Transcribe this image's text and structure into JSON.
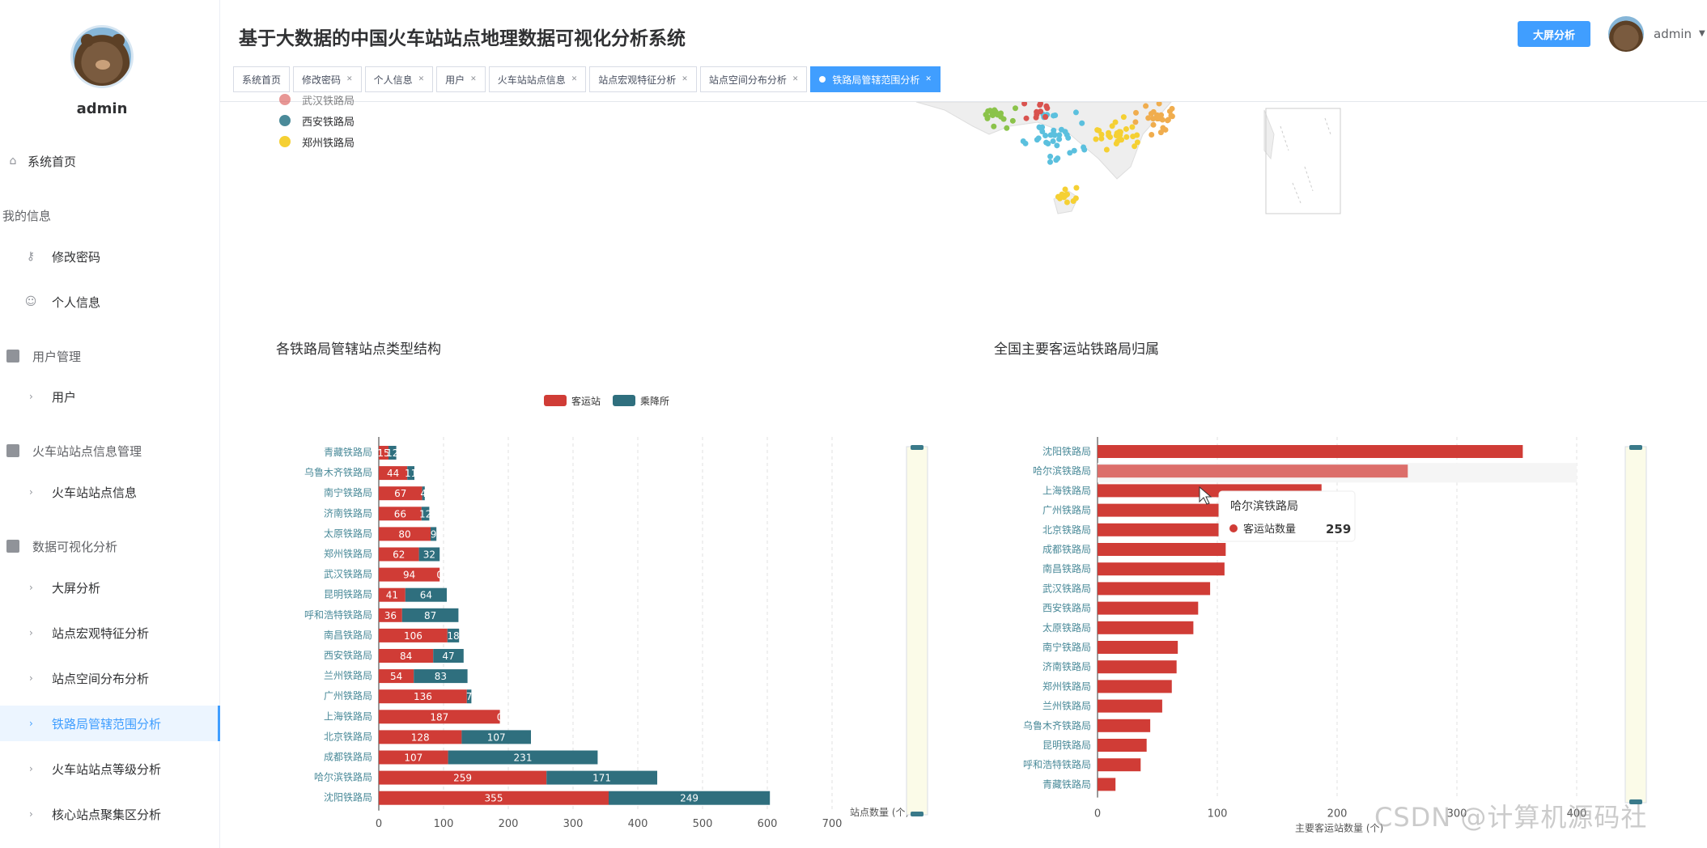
{
  "app": {
    "title": "基于大数据的中国火车站站点地理数据可视化分析系统",
    "big_screen_button": "大屏分析",
    "user": "admin"
  },
  "sidebar": {
    "user": "admin",
    "home": "系统首页",
    "group_my": "我的信息",
    "change_password": "修改密码",
    "profile": "个人信息",
    "group_user_mgmt": "用户管理",
    "users": "用户",
    "group_station_mgmt": "火车站站点信息管理",
    "station_info": "火车站站点信息",
    "group_viz": "数据可视化分析",
    "viz_items": [
      "大屏分析",
      "站点宏观特征分析",
      "站点空间分布分析",
      "铁路局管辖范围分析",
      "火车站站点等级分析",
      "核心站点聚集区分析"
    ]
  },
  "tabs": [
    {
      "label": "系统首页",
      "closable": false
    },
    {
      "label": "修改密码",
      "closable": true
    },
    {
      "label": "个人信息",
      "closable": true
    },
    {
      "label": "用户",
      "closable": true
    },
    {
      "label": "火车站站点信息",
      "closable": true
    },
    {
      "label": "站点宏观特征分析",
      "closable": true
    },
    {
      "label": "站点空间分布分析",
      "closable": true
    },
    {
      "label": "铁路局管辖范围分析",
      "closable": true,
      "active": true
    }
  ],
  "map_legend": [
    {
      "label": "武汉铁路局",
      "color": "#d9534f"
    },
    {
      "label": "西安铁路局",
      "color": "#4a8a99"
    },
    {
      "label": "郑州铁路局",
      "color": "#f5d033"
    }
  ],
  "watermark": "CSDN @计算机源码社",
  "chart_data": [
    {
      "type": "bar",
      "orientation": "horizontal",
      "stacked": true,
      "title": "各铁路局管辖站点类型结构",
      "xlabel": "站点数量 (个)",
      "xlim": [
        0,
        700
      ],
      "xticks": [
        0,
        100,
        200,
        300,
        400,
        500,
        600,
        700
      ],
      "legend": "top-center",
      "categories": [
        "青藏铁路局",
        "乌鲁木齐铁路局",
        "南宁铁路局",
        "济南铁路局",
        "太原铁路局",
        "郑州铁路局",
        "武汉铁路局",
        "昆明铁路局",
        "呼和浩特铁路局",
        "南昌铁路局",
        "西安铁路局",
        "兰州铁路局",
        "广州铁路局",
        "上海铁路局",
        "北京铁路局",
        "成都铁路局",
        "哈尔滨铁路局",
        "沈阳铁路局"
      ],
      "series": [
        {
          "name": "客运站",
          "color": "#d03c36",
          "values": [
            15,
            44,
            67,
            66,
            80,
            62,
            94,
            41,
            36,
            106,
            84,
            54,
            136,
            187,
            128,
            107,
            259,
            355
          ]
        },
        {
          "name": "乘降所",
          "color": "#2f6f7e",
          "values": [
            12,
            11,
            4,
            12,
            9,
            32,
            0,
            64,
            87,
            18,
            47,
            83,
            7,
            0,
            107,
            231,
            171,
            249
          ]
        }
      ]
    },
    {
      "type": "bar",
      "orientation": "horizontal",
      "title": "全国主要客运站铁路局归属",
      "xlabel": "主要客运站数量 (个)",
      "xlim": [
        0,
        400
      ],
      "xticks": [
        0,
        100,
        200,
        300,
        400
      ],
      "categories": [
        "沈阳铁路局",
        "哈尔滨铁路局",
        "上海铁路局",
        "广州铁路局",
        "北京铁路局",
        "成都铁路局",
        "南昌铁路局",
        "武汉铁路局",
        "西安铁路局",
        "太原铁路局",
        "南宁铁路局",
        "济南铁路局",
        "郑州铁路局",
        "兰州铁路局",
        "乌鲁木齐铁路局",
        "昆明铁路局",
        "呼和浩特铁路局",
        "青藏铁路局"
      ],
      "series": [
        {
          "name": "客运站数量",
          "color": "#d03c36",
          "values": [
            355,
            259,
            187,
            136,
            128,
            107,
            106,
            94,
            84,
            80,
            67,
            66,
            62,
            54,
            44,
            41,
            36,
            15
          ]
        }
      ],
      "tooltip": {
        "title": "哈尔滨铁路局",
        "label": "客运站数量",
        "value": "259"
      }
    }
  ]
}
